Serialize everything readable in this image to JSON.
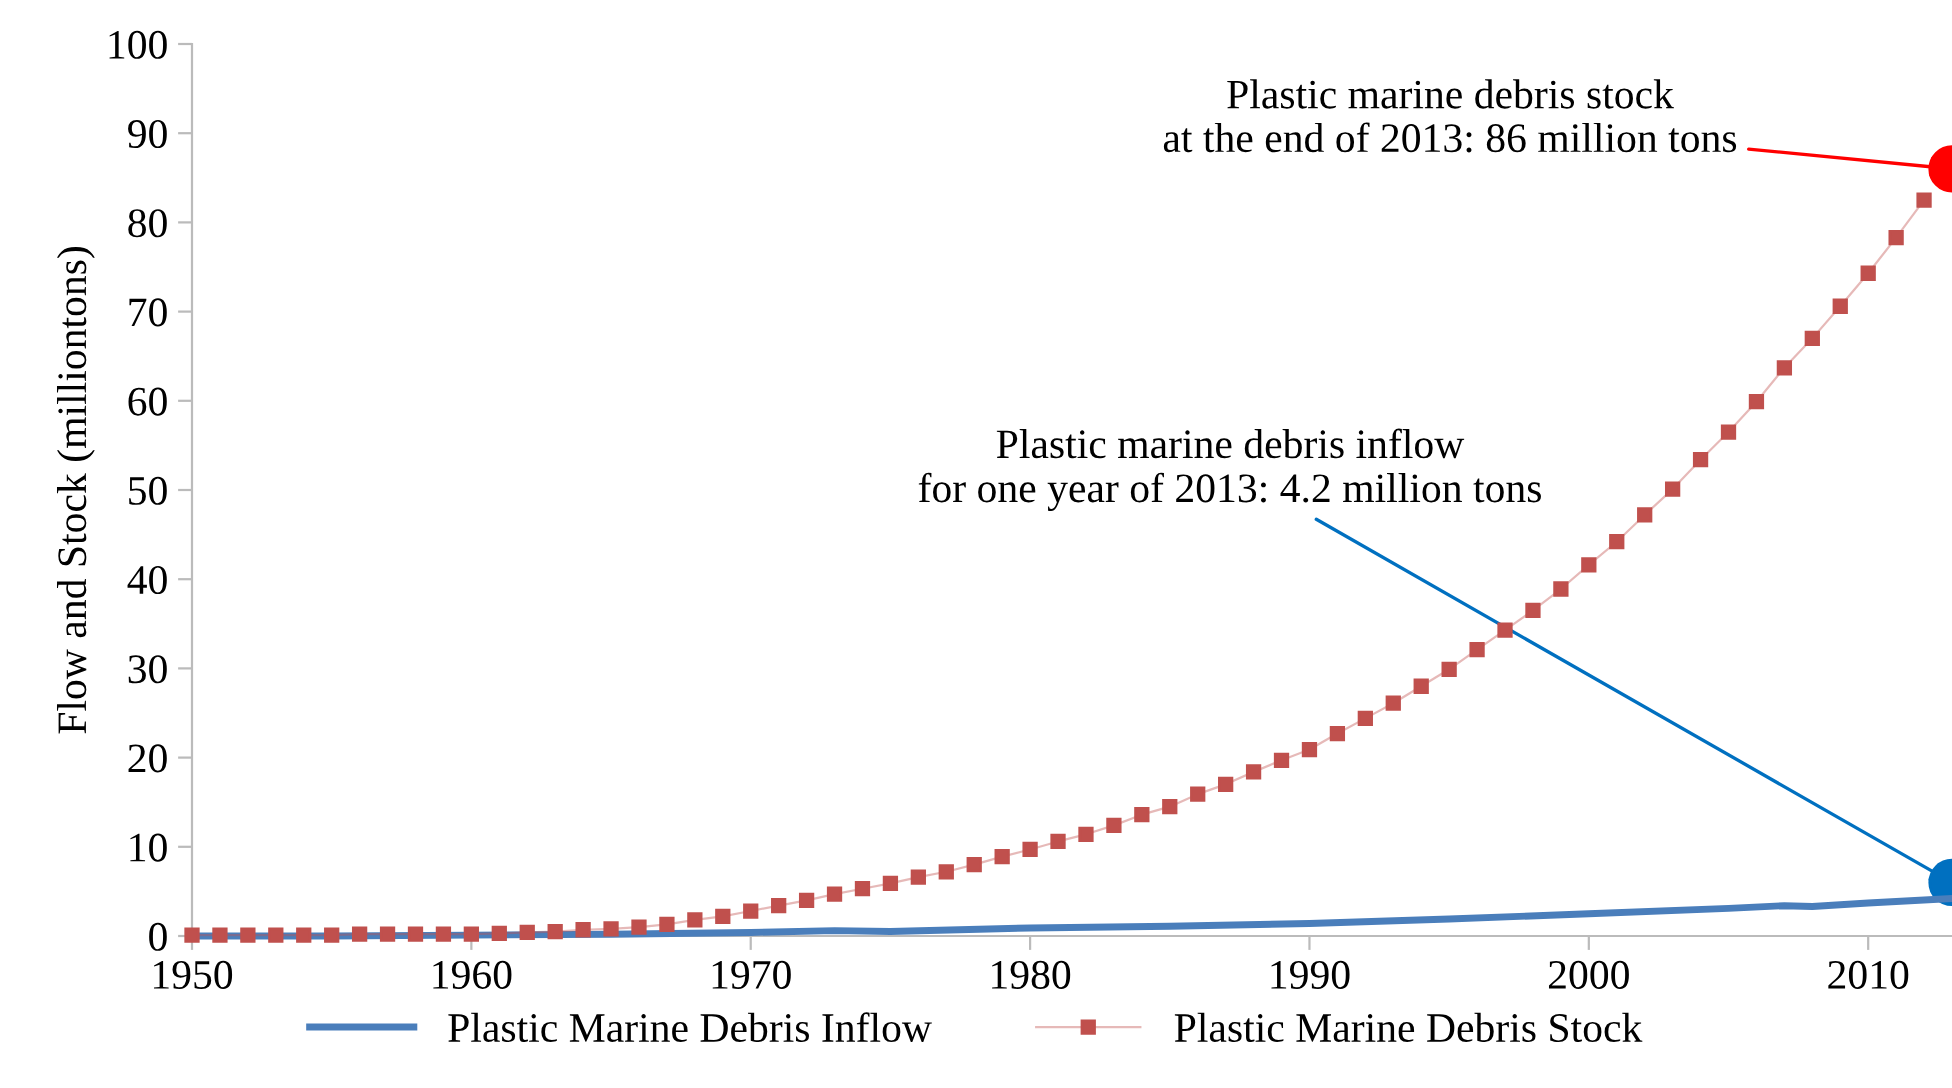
{
  "chart_data": {
    "type": "line",
    "ylabel": "Flow and Stock (milliontons)",
    "xlim": [
      1950,
      2013
    ],
    "xticks": [
      1950,
      1960,
      1970,
      1980,
      1990,
      2000,
      2010
    ],
    "ylim": [
      0,
      100
    ],
    "yticks": [
      0,
      10,
      20,
      30,
      40,
      50,
      60,
      70,
      80,
      90,
      100
    ],
    "grid": false,
    "legend": "bottom",
    "series": [
      {
        "name": "Plastic Marine Debris Inflow",
        "color": "#4a7ebb",
        "marker": "none",
        "x": [
          1950,
          1955,
          1960,
          1965,
          1970,
          1973,
          1975,
          1980,
          1985,
          1990,
          1995,
          2000,
          2005,
          2007,
          2008,
          2010,
          2013
        ],
        "values": [
          0,
          0,
          0.1,
          0.2,
          0.4,
          0.6,
          0.5,
          0.9,
          1.1,
          1.4,
          1.9,
          2.5,
          3.1,
          3.4,
          3.3,
          3.7,
          4.2
        ]
      },
      {
        "name": "Plastic Marine Debris Stock",
        "color": "#c0504d",
        "marker": "square",
        "x": [
          1950,
          1951,
          1952,
          1953,
          1954,
          1955,
          1956,
          1957,
          1958,
          1959,
          1960,
          1961,
          1962,
          1963,
          1964,
          1965,
          1966,
          1967,
          1968,
          1969,
          1970,
          1971,
          1972,
          1973,
          1974,
          1975,
          1976,
          1977,
          1978,
          1979,
          1980,
          1981,
          1982,
          1983,
          1984,
          1985,
          1986,
          1987,
          1988,
          1989,
          1990,
          1991,
          1992,
          1993,
          1994,
          1995,
          1996,
          1997,
          1998,
          1999,
          2000,
          2001,
          2002,
          2003,
          2004,
          2005,
          2006,
          2007,
          2008,
          2009,
          2010,
          2011,
          2012
        ],
        "values": [
          0.1,
          0.1,
          0.1,
          0.1,
          0.1,
          0.1,
          0.2,
          0.2,
          0.2,
          0.2,
          0.2,
          0.3,
          0.4,
          0.5,
          0.7,
          0.8,
          1.0,
          1.3,
          1.8,
          2.2,
          2.8,
          3.4,
          4.0,
          4.7,
          5.3,
          5.9,
          6.6,
          7.2,
          8.0,
          8.9,
          9.7,
          10.6,
          11.4,
          12.4,
          13.6,
          14.5,
          15.9,
          17.0,
          18.4,
          19.7,
          20.9,
          22.7,
          24.4,
          26.1,
          28.0,
          29.9,
          32.1,
          34.3,
          36.5,
          38.9,
          41.6,
          44.2,
          47.2,
          50.1,
          53.4,
          56.5,
          59.9,
          63.7,
          67.0,
          70.6,
          74.3,
          78.3,
          82.5
        ]
      },
      {
        "type": "scatter",
        "color": "#ff0000",
        "marker": "circle",
        "x": [
          2013
        ],
        "values": [
          86
        ]
      },
      {
        "type": "scatter",
        "color": "#0070c0",
        "marker": "circle",
        "x": [
          2013
        ],
        "values": [
          6
        ]
      }
    ],
    "annotations": [
      {
        "text": "Plastic marine debris stock\nat the end of 2013: 86 million tons",
        "x": 2013,
        "y": 86
      },
      {
        "text": "Plastic marine debris inflow\nfor one year of 2013: 4.2 million tons",
        "x": 2013,
        "y": 6
      }
    ]
  }
}
